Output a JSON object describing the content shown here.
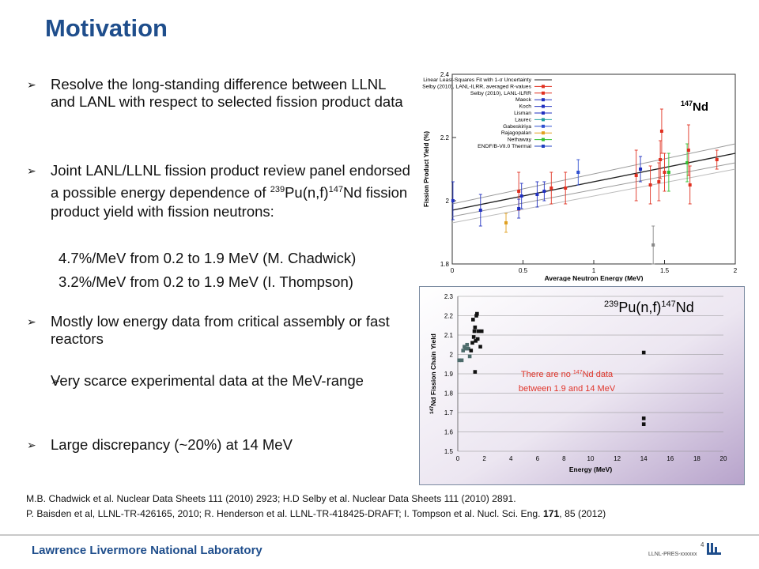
{
  "title": "Motivation",
  "bullets": [
    {
      "text": "Resolve the long-standing difference between LLNL and LANL with respect to selected fission product data"
    },
    {
      "text_pre": "Joint LANL/LLNL fission product review panel endorsed a possible energy dependence of ",
      "sup1": "239",
      "mid": "Pu(n,f)",
      "sup2": "147",
      "text_post": "Nd fission product yield with fission neutrons:"
    },
    {
      "text": "Mostly low energy data from critical assembly or fast reactors"
    },
    {
      "text": "Very scarce experimental data at the MeV-range"
    },
    {
      "text": "Large discrepancy (~20%)  at 14 MeV"
    }
  ],
  "sub_items": [
    "4.7%/MeV from 0.2 to 1.9 MeV (M. Chadwick)",
    "3.2%/MeV from 0.2 to 1.9 MeV (I. Thompson)"
  ],
  "references": {
    "line1": "M.B. Chadwick et al. Nuclear Data Sheets 111 (2010) 2923; H.D Selby et al. Nuclear Data Sheets 111 (2010) 2891.",
    "line2_pre": "P. Baisden et al, LLNL-TR-426165, 2010; R. Henderson et al. LLNL-TR-418425-DRAFT; I. Tompson et al. Nucl. Sci. Eng. ",
    "line2_bold": "171",
    "line2_post": ", 85 (2012)"
  },
  "footer": {
    "lab_name": "Lawrence Livermore National Laboratory",
    "doc_code": "LLNL-PRES-xxxxxx",
    "page_number": "4"
  },
  "chart_data": [
    {
      "type": "scatter",
      "nuclide_label": "147Nd",
      "xlabel": "Average Neutron Energy (MeV)",
      "ylabel": "Fission Product Yield (%)",
      "xlim": [
        0,
        2
      ],
      "ylim": [
        1.8,
        2.4
      ],
      "xticks": [
        "0",
        "0.5",
        "1",
        "1.5",
        "2"
      ],
      "yticks": [
        "1.8",
        "2",
        "2.2",
        "2.4"
      ],
      "legend_position": "top-left",
      "legend": [
        {
          "name": "Linear Least-Squares Fit with 1-σ Uncertainty",
          "color": "#222222"
        },
        {
          "name": "Selby (2010), LANL-ILRR, averaged R-values",
          "color": "#e03020"
        },
        {
          "name": "Selby (2010), LANL-ILRR",
          "color": "#e03020"
        },
        {
          "name": "Maeck",
          "color": "#2030c0"
        },
        {
          "name": "Koch",
          "color": "#2030c0"
        },
        {
          "name": "Lisman",
          "color": "#2030c0"
        },
        {
          "name": "Laurec",
          "color": "#20a0a0"
        },
        {
          "name": "Gabeskiriya",
          "color": "#3050d0"
        },
        {
          "name": "Rajagopalan",
          "color": "#e0a020"
        },
        {
          "name": "Nethaway",
          "color": "#30c030"
        },
        {
          "name": "ENDF/B-VII.0 Thermal",
          "color": "#2040c0"
        }
      ],
      "fit_lines": [
        {
          "x": [
            0,
            2
          ],
          "y": [
            1.97,
            2.15
          ]
        },
        {
          "x": [
            0,
            2
          ],
          "y": [
            1.95,
            2.12
          ]
        },
        {
          "x": [
            0,
            2
          ],
          "y": [
            1.99,
            2.18
          ]
        },
        {
          "x": [
            0,
            2
          ],
          "y": [
            1.93,
            2.1
          ]
        }
      ],
      "points": [
        {
          "x": 0.005,
          "y": 2.0,
          "err": 0.06,
          "color": "#2030c0"
        },
        {
          "x": 0.2,
          "y": 1.97,
          "err": 0.05,
          "color": "#2030c0"
        },
        {
          "x": 0.38,
          "y": 1.93,
          "err": 0.03,
          "color": "#e0a020"
        },
        {
          "x": 0.47,
          "y": 2.03,
          "err": 0.06,
          "color": "#e03020"
        },
        {
          "x": 0.47,
          "y": 1.975,
          "err": 0.03,
          "color": "#2030c0"
        },
        {
          "x": 0.49,
          "y": 2.015,
          "err": 0.04,
          "color": "#2030c0"
        },
        {
          "x": 0.6,
          "y": 2.02,
          "err": 0.04,
          "color": "#2030c0"
        },
        {
          "x": 0.65,
          "y": 2.03,
          "err": 0.03,
          "color": "#2030c0"
        },
        {
          "x": 0.7,
          "y": 2.04,
          "err": 0.05,
          "color": "#e03020"
        },
        {
          "x": 0.8,
          "y": 2.04,
          "err": 0.05,
          "color": "#e03020"
        },
        {
          "x": 0.89,
          "y": 2.09,
          "err": 0.04,
          "color": "#3050d0"
        },
        {
          "x": 1.3,
          "y": 2.08,
          "err": 0.08,
          "color": "#e03020"
        },
        {
          "x": 1.33,
          "y": 2.1,
          "err": 0.04,
          "color": "#2030c0"
        },
        {
          "x": 1.4,
          "y": 2.05,
          "err": 0.06,
          "color": "#e03020"
        },
        {
          "x": 1.42,
          "y": 1.86,
          "err": 0.06,
          "color": "#888888"
        },
        {
          "x": 1.46,
          "y": 2.06,
          "err": 0.06,
          "color": "#e03020"
        },
        {
          "x": 1.47,
          "y": 2.13,
          "err": 0.06,
          "color": "#e03020"
        },
        {
          "x": 1.48,
          "y": 2.22,
          "err": 0.07,
          "color": "#e03020"
        },
        {
          "x": 1.5,
          "y": 2.09,
          "err": 0.06,
          "color": "#e03020"
        },
        {
          "x": 1.53,
          "y": 2.09,
          "err": 0.06,
          "color": "#30c030"
        },
        {
          "x": 1.66,
          "y": 2.12,
          "err": 0.06,
          "color": "#30c030"
        },
        {
          "x": 1.67,
          "y": 2.16,
          "err": 0.08,
          "color": "#e03020"
        },
        {
          "x": 1.68,
          "y": 2.05,
          "err": 0.06,
          "color": "#e03020"
        },
        {
          "x": 1.87,
          "y": 2.13,
          "err": 0.03,
          "color": "#e03020"
        }
      ]
    },
    {
      "type": "scatter",
      "title_sup1": "239",
      "title_main": "Pu(n,f)",
      "title_sup2": "147",
      "title_post": "Nd",
      "annotation_pre": "There are no ",
      "annotation_sup": "147",
      "annotation_mid": "Nd data",
      "annotation_line2": "between 1.9 and 14 MeV",
      "xlabel": "Energy (MeV)",
      "ylabel_sup": "147",
      "ylabel": "Nd Fission Chain Yield",
      "xlim": [
        0,
        20
      ],
      "ylim": [
        1.5,
        2.3
      ],
      "xticks": [
        "0",
        "2",
        "4",
        "6",
        "8",
        "10",
        "12",
        "14",
        "16",
        "18",
        "20"
      ],
      "yticks": [
        "1.5",
        "1.6",
        "1.7",
        "1.8",
        "1.9",
        "2",
        "2.1",
        "2.2",
        "2.3"
      ],
      "points": [
        {
          "x": 0.1,
          "y": 1.97
        },
        {
          "x": 0.3,
          "y": 1.97
        },
        {
          "x": 0.4,
          "y": 2.02
        },
        {
          "x": 0.5,
          "y": 2.04
        },
        {
          "x": 0.6,
          "y": 2.03
        },
        {
          "x": 0.7,
          "y": 2.05
        },
        {
          "x": 0.8,
          "y": 2.03
        },
        {
          "x": 0.9,
          "y": 1.99
        },
        {
          "x": 1.0,
          "y": 2.02
        },
        {
          "x": 1.1,
          "y": 2.06
        },
        {
          "x": 1.15,
          "y": 2.18
        },
        {
          "x": 1.2,
          "y": 2.09
        },
        {
          "x": 1.25,
          "y": 2.12
        },
        {
          "x": 1.3,
          "y": 2.14
        },
        {
          "x": 1.3,
          "y": 1.91
        },
        {
          "x": 1.35,
          "y": 2.07
        },
        {
          "x": 1.4,
          "y": 2.2
        },
        {
          "x": 1.45,
          "y": 2.21
        },
        {
          "x": 1.5,
          "y": 2.08
        },
        {
          "x": 1.55,
          "y": 2.12
        },
        {
          "x": 1.7,
          "y": 2.04
        },
        {
          "x": 1.8,
          "y": 2.12
        },
        {
          "x": 14,
          "y": 2.01
        },
        {
          "x": 14,
          "y": 1.67
        },
        {
          "x": 14,
          "y": 1.64
        }
      ]
    }
  ]
}
